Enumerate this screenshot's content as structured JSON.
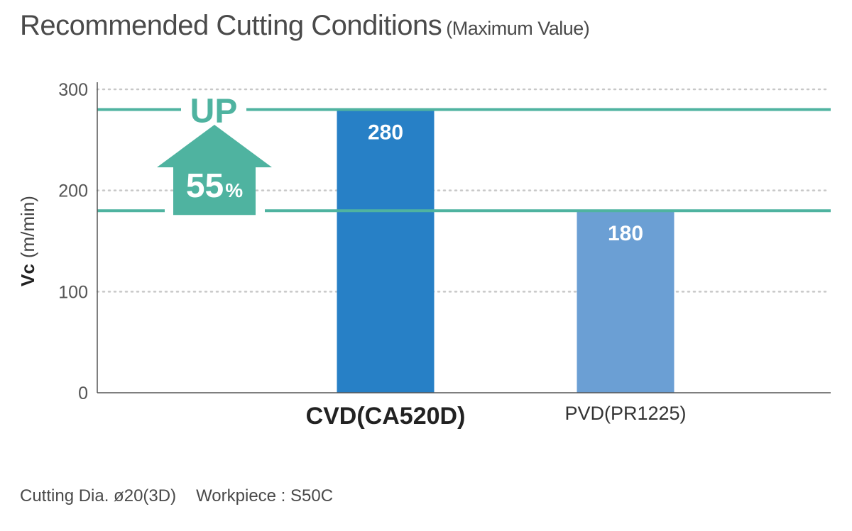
{
  "title": "Recommended Cutting Conditions",
  "subtitle": "(Maximum Value)",
  "footer": {
    "cutting_dia": "Cutting Dia. ø20(3D)",
    "workpiece": "Workpiece : S50C"
  },
  "colors": {
    "accent": "#4fb3a0",
    "bar_primary": "#2780c6",
    "bar_secondary": "#6b9fd4",
    "axis": "#555555",
    "grid": "#c8c8c8"
  },
  "chart_data": {
    "type": "bar",
    "categories": [
      "CVD(CA520D)",
      "PVD(PR1225)"
    ],
    "values": [
      280,
      180
    ],
    "value_labels": [
      "280",
      "180"
    ],
    "ylim": [
      0,
      300
    ],
    "yticks": [
      0,
      100,
      200,
      300
    ],
    "ytick_labels": [
      "0",
      "100",
      "200",
      "300"
    ],
    "ylabel_main": "Vc",
    "ylabel_unit": "(m/min)",
    "xlabel": "",
    "grid": true,
    "reference_lines": [
      280,
      180
    ],
    "annotation": {
      "up_text": "UP",
      "percent_value": "55",
      "percent_sign": "%"
    }
  }
}
